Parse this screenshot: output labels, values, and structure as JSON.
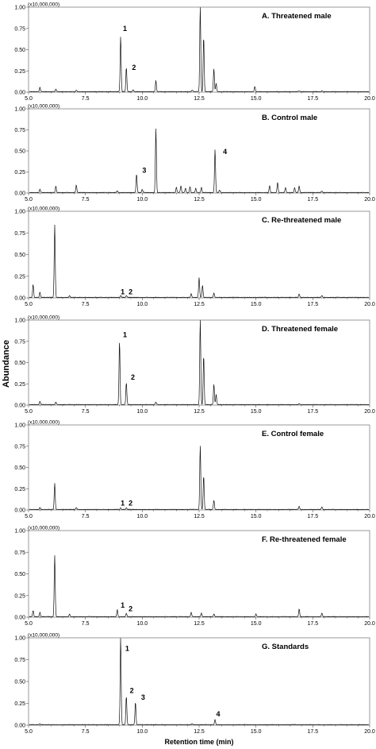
{
  "chart_data": {
    "type": "line",
    "xlabel": "Retention time (min)",
    "ylabel": "Abundance",
    "y_multiplier": "(x10,000,000)",
    "xlim": [
      5.0,
      20.0
    ],
    "ylim": [
      0.0,
      1.0
    ],
    "x_ticks": [
      "5.0",
      "7.5",
      "10.0",
      "12.5",
      "15.0",
      "17.5",
      "20.0"
    ],
    "y_ticks": [
      "0.00",
      "0.25",
      "0.50",
      "0.75",
      "1.00"
    ],
    "panels": [
      {
        "title": "A. Threatened male",
        "peaks": [
          {
            "x": 5.5,
            "y": 0.05
          },
          {
            "x": 6.2,
            "y": 0.03
          },
          {
            "x": 7.1,
            "y": 0.02
          },
          {
            "x": 9.05,
            "y": 0.65
          },
          {
            "x": 9.3,
            "y": 0.29
          },
          {
            "x": 9.6,
            "y": 0.02
          },
          {
            "x": 10.6,
            "y": 0.13
          },
          {
            "x": 12.2,
            "y": 0.02
          },
          {
            "x": 12.55,
            "y": 1.0
          },
          {
            "x": 12.7,
            "y": 0.65
          },
          {
            "x": 13.15,
            "y": 0.27
          },
          {
            "x": 13.25,
            "y": 0.1
          },
          {
            "x": 14.95,
            "y": 0.06
          },
          {
            "x": 16.9,
            "y": 0.01
          },
          {
            "x": 17.9,
            "y": 0.01
          }
        ],
        "annotations": [
          {
            "text": "1",
            "x": 9.15,
            "y": 0.72
          },
          {
            "text": "2",
            "x": 9.55,
            "y": 0.26
          }
        ]
      },
      {
        "title": "B. Control male",
        "peaks": [
          {
            "x": 5.5,
            "y": 0.04
          },
          {
            "x": 6.2,
            "y": 0.08
          },
          {
            "x": 7.1,
            "y": 0.09
          },
          {
            "x": 8.9,
            "y": 0.02
          },
          {
            "x": 9.75,
            "y": 0.22
          },
          {
            "x": 10.0,
            "y": 0.04
          },
          {
            "x": 10.6,
            "y": 0.76
          },
          {
            "x": 11.5,
            "y": 0.06
          },
          {
            "x": 11.7,
            "y": 0.08
          },
          {
            "x": 11.9,
            "y": 0.05
          },
          {
            "x": 12.1,
            "y": 0.07
          },
          {
            "x": 12.35,
            "y": 0.05
          },
          {
            "x": 12.6,
            "y": 0.06
          },
          {
            "x": 13.2,
            "y": 0.51
          },
          {
            "x": 13.4,
            "y": 0.03
          },
          {
            "x": 15.6,
            "y": 0.08
          },
          {
            "x": 15.95,
            "y": 0.12
          },
          {
            "x": 16.3,
            "y": 0.06
          },
          {
            "x": 16.7,
            "y": 0.06
          },
          {
            "x": 16.9,
            "y": 0.08
          },
          {
            "x": 17.9,
            "y": 0.02
          }
        ],
        "annotations": [
          {
            "text": "3",
            "x": 10.0,
            "y": 0.24
          },
          {
            "text": "4",
            "x": 13.55,
            "y": 0.46
          }
        ]
      },
      {
        "title": "C. Re-threatened male",
        "peaks": [
          {
            "x": 5.2,
            "y": 0.15
          },
          {
            "x": 5.5,
            "y": 0.06
          },
          {
            "x": 6.15,
            "y": 0.84
          },
          {
            "x": 6.8,
            "y": 0.02
          },
          {
            "x": 9.05,
            "y": 0.02
          },
          {
            "x": 9.3,
            "y": 0.02
          },
          {
            "x": 12.15,
            "y": 0.04
          },
          {
            "x": 12.5,
            "y": 0.23
          },
          {
            "x": 12.65,
            "y": 0.14
          },
          {
            "x": 13.15,
            "y": 0.05
          },
          {
            "x": 16.9,
            "y": 0.04
          },
          {
            "x": 17.9,
            "y": 0.02
          }
        ],
        "annotations": [
          {
            "text": "1",
            "x": 9.05,
            "y": 0.04
          },
          {
            "text": "2",
            "x": 9.4,
            "y": 0.04
          }
        ]
      },
      {
        "title": "D. Threatened female",
        "peaks": [
          {
            "x": 5.5,
            "y": 0.04
          },
          {
            "x": 6.2,
            "y": 0.03
          },
          {
            "x": 9.0,
            "y": 0.75
          },
          {
            "x": 9.3,
            "y": 0.26
          },
          {
            "x": 10.6,
            "y": 0.03
          },
          {
            "x": 12.55,
            "y": 1.0
          },
          {
            "x": 12.7,
            "y": 0.58
          },
          {
            "x": 13.15,
            "y": 0.24
          },
          {
            "x": 13.25,
            "y": 0.12
          },
          {
            "x": 16.9,
            "y": 0.01
          }
        ],
        "annotations": [
          {
            "text": "1",
            "x": 9.15,
            "y": 0.8
          },
          {
            "text": "2",
            "x": 9.5,
            "y": 0.3
          }
        ]
      },
      {
        "title": "E. Control female",
        "peaks": [
          {
            "x": 5.5,
            "y": 0.02
          },
          {
            "x": 6.15,
            "y": 0.31
          },
          {
            "x": 7.1,
            "y": 0.02
          },
          {
            "x": 9.05,
            "y": 0.02
          },
          {
            "x": 9.3,
            "y": 0.02
          },
          {
            "x": 12.55,
            "y": 0.75
          },
          {
            "x": 12.7,
            "y": 0.4
          },
          {
            "x": 13.15,
            "y": 0.11
          },
          {
            "x": 16.9,
            "y": 0.04
          },
          {
            "x": 17.9,
            "y": 0.03
          }
        ],
        "annotations": [
          {
            "text": "1",
            "x": 9.05,
            "y": 0.05
          },
          {
            "text": "2",
            "x": 9.4,
            "y": 0.05
          }
        ]
      },
      {
        "title": "F. Re-threatened female",
        "peaks": [
          {
            "x": 5.2,
            "y": 0.07
          },
          {
            "x": 5.5,
            "y": 0.05
          },
          {
            "x": 6.15,
            "y": 0.71
          },
          {
            "x": 6.8,
            "y": 0.03
          },
          {
            "x": 8.9,
            "y": 0.08
          },
          {
            "x": 9.3,
            "y": 0.04
          },
          {
            "x": 12.15,
            "y": 0.05
          },
          {
            "x": 12.6,
            "y": 0.04
          },
          {
            "x": 13.15,
            "y": 0.03
          },
          {
            "x": 15.0,
            "y": 0.03
          },
          {
            "x": 16.9,
            "y": 0.09
          },
          {
            "x": 17.9,
            "y": 0.04
          }
        ],
        "annotations": [
          {
            "text": "1",
            "x": 9.05,
            "y": 0.11
          },
          {
            "text": "2",
            "x": 9.4,
            "y": 0.07
          }
        ]
      },
      {
        "title": "G. Standards",
        "peaks": [
          {
            "x": 5.5,
            "y": 0.01
          },
          {
            "x": 9.05,
            "y": 1.0
          },
          {
            "x": 9.3,
            "y": 0.33
          },
          {
            "x": 9.7,
            "y": 0.26
          },
          {
            "x": 12.2,
            "y": 0.01
          },
          {
            "x": 13.2,
            "y": 0.06
          }
        ],
        "annotations": [
          {
            "text": "1",
            "x": 9.25,
            "y": 0.85
          },
          {
            "text": "2",
            "x": 9.45,
            "y": 0.37
          },
          {
            "text": "3",
            "x": 9.95,
            "y": 0.29
          },
          {
            "text": "4",
            "x": 13.25,
            "y": 0.1
          }
        ]
      }
    ]
  }
}
